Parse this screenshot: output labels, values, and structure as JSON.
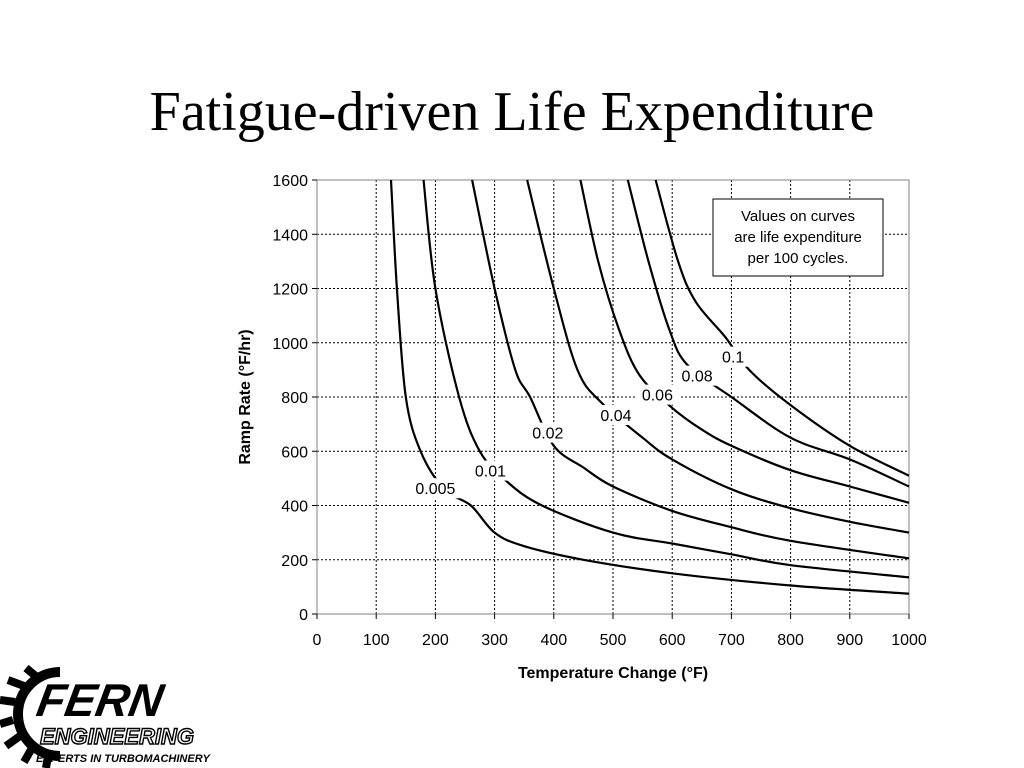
{
  "slide": {
    "title": "Fatigue-driven Life Expenditure"
  },
  "logo": {
    "name": "FERN",
    "line2": "ENGINEERING",
    "tagline": "EXPERTS IN TURBOMACHINERY"
  },
  "colors": {
    "curve": "#000000",
    "grid": "#000000",
    "background": "#ffffff"
  },
  "chart_data": {
    "type": "line",
    "title": "",
    "xlabel": "Temperature Change (°F)",
    "ylabel": "Ramp Rate (°F/hr)",
    "xlim": [
      0,
      1000
    ],
    "ylim": [
      0,
      1600
    ],
    "xticks": [
      0,
      100,
      200,
      300,
      400,
      500,
      600,
      700,
      800,
      900,
      1000
    ],
    "yticks": [
      0,
      200,
      400,
      600,
      800,
      1000,
      1200,
      1400,
      1600
    ],
    "grid": true,
    "grid_style": "dotted",
    "annotation": "Values on curves are life expenditure per 100 cycles.",
    "annotation_placement": "top-right",
    "series": [
      {
        "name": "0.005",
        "label_at": [
          200,
          460
        ],
        "points": [
          [
            125,
            1600
          ],
          [
            135,
            1200
          ],
          [
            150,
            800
          ],
          [
            175,
            600
          ],
          [
            215,
            460
          ],
          [
            260,
            400
          ],
          [
            300,
            300
          ],
          [
            350,
            250
          ],
          [
            450,
            200
          ],
          [
            600,
            150
          ],
          [
            800,
            105
          ],
          [
            1000,
            75
          ]
        ]
      },
      {
        "name": "0.01",
        "label_at": [
          293,
          525
        ],
        "points": [
          [
            180,
            1600
          ],
          [
            200,
            1200
          ],
          [
            240,
            800
          ],
          [
            275,
            600
          ],
          [
            320,
            490
          ],
          [
            380,
            400
          ],
          [
            500,
            300
          ],
          [
            600,
            260
          ],
          [
            700,
            220
          ],
          [
            800,
            180
          ],
          [
            1000,
            135
          ]
        ]
      },
      {
        "name": "0.02",
        "label_at": [
          390,
          665
        ],
        "points": [
          [
            262,
            1600
          ],
          [
            300,
            1200
          ],
          [
            335,
            900
          ],
          [
            360,
            800
          ],
          [
            400,
            620
          ],
          [
            450,
            540
          ],
          [
            500,
            470
          ],
          [
            600,
            380
          ],
          [
            700,
            320
          ],
          [
            800,
            270
          ],
          [
            1000,
            205
          ]
        ]
      },
      {
        "name": "0.04",
        "label_at": [
          505,
          730
        ],
        "points": [
          [
            355,
            1600
          ],
          [
            400,
            1200
          ],
          [
            440,
            900
          ],
          [
            480,
            780
          ],
          [
            550,
            650
          ],
          [
            600,
            570
          ],
          [
            700,
            460
          ],
          [
            800,
            390
          ],
          [
            900,
            340
          ],
          [
            1000,
            300
          ]
        ]
      },
      {
        "name": "0.06",
        "label_at": [
          575,
          805
        ],
        "points": [
          [
            445,
            1600
          ],
          [
            475,
            1300
          ],
          [
            510,
            1050
          ],
          [
            545,
            880
          ],
          [
            600,
            760
          ],
          [
            650,
            680
          ],
          [
            700,
            620
          ],
          [
            800,
            530
          ],
          [
            900,
            470
          ],
          [
            1000,
            410
          ]
        ]
      },
      {
        "name": "0.08",
        "label_at": [
          642,
          875
        ],
        "points": [
          [
            525,
            1600
          ],
          [
            560,
            1300
          ],
          [
            595,
            1050
          ],
          [
            625,
            920
          ],
          [
            700,
            800
          ],
          [
            800,
            650
          ],
          [
            900,
            570
          ],
          [
            1000,
            470
          ]
        ]
      },
      {
        "name": "0.1",
        "label_at": [
          703,
          945
        ],
        "points": [
          [
            572,
            1600
          ],
          [
            610,
            1300
          ],
          [
            640,
            1150
          ],
          [
            690,
            1020
          ],
          [
            730,
            900
          ],
          [
            800,
            770
          ],
          [
            900,
            620
          ],
          [
            1000,
            510
          ]
        ]
      }
    ]
  }
}
